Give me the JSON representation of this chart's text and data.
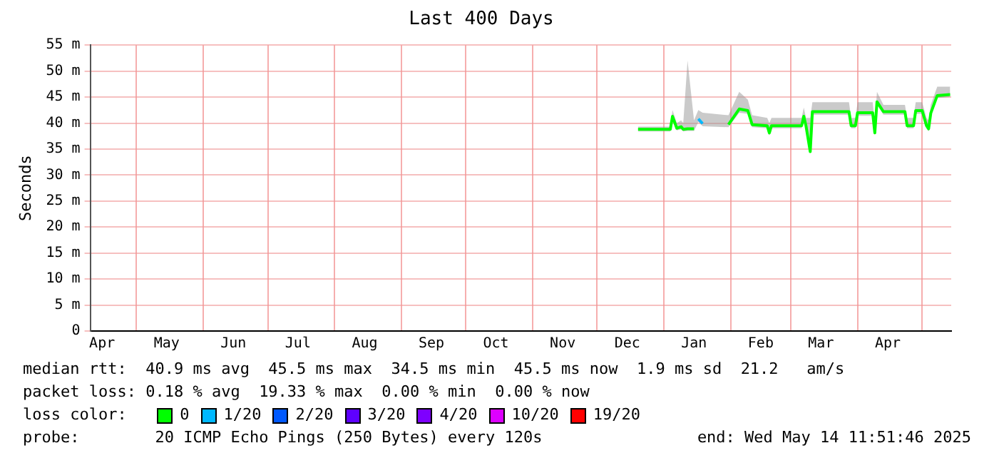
{
  "chart_data": {
    "type": "line",
    "title": "Last 400 Days",
    "ylabel": "Seconds",
    "legend_title": "loss color:",
    "legend": "bottom",
    "grid": true,
    "marker": "none",
    "line_style": "solid",
    "xlim": [
      "2024-04-09T11:51",
      "2025-05-14T11:51"
    ],
    "xticks": [
      {
        "value": "2024-04-15",
        "label": "Apr"
      },
      {
        "value": "2024-05-01",
        "label": null
      },
      {
        "value": "2024-05-15",
        "label": "May"
      },
      {
        "value": "2024-06-01",
        "label": null
      },
      {
        "value": "2024-06-15",
        "label": "Jun"
      },
      {
        "value": "2024-07-01",
        "label": null
      },
      {
        "value": "2024-07-15",
        "label": "Jul"
      },
      {
        "value": "2024-08-01",
        "label": null
      },
      {
        "value": "2024-08-15",
        "label": "Aug"
      },
      {
        "value": "2024-09-01",
        "label": null
      },
      {
        "value": "2024-09-15",
        "label": "Sep"
      },
      {
        "value": "2024-10-01",
        "label": null
      },
      {
        "value": "2024-10-15",
        "label": "Oct"
      },
      {
        "value": "2024-11-01",
        "label": null
      },
      {
        "value": "2024-11-15",
        "label": "Nov"
      },
      {
        "value": "2024-12-01",
        "label": null
      },
      {
        "value": "2024-12-15",
        "label": "Dec"
      },
      {
        "value": "2025-01-01",
        "label": null
      },
      {
        "value": "2025-01-15",
        "label": "Jan"
      },
      {
        "value": "2025-02-01",
        "label": null
      },
      {
        "value": "2025-02-15",
        "label": "Feb"
      },
      {
        "value": "2025-03-01",
        "label": null
      },
      {
        "value": "2025-03-15",
        "label": "Mar"
      },
      {
        "value": "2025-04-01",
        "label": null
      },
      {
        "value": "2025-04-15",
        "label": "Apr"
      },
      {
        "value": "2025-05-01",
        "label": null
      }
    ],
    "ylim": [
      0,
      55
    ],
    "yticks": [
      0,
      {
        "value": 5,
        "label": "5 m"
      },
      {
        "value": 10,
        "label": "10 m"
      },
      {
        "value": 15,
        "label": "15 m"
      },
      {
        "value": 20,
        "label": "20 m"
      },
      {
        "value": 25,
        "label": "25 m"
      },
      {
        "value": 30,
        "label": "30 m"
      },
      {
        "value": 35,
        "label": "35 m"
      },
      {
        "value": 40,
        "label": "40 m"
      },
      {
        "value": 45,
        "label": "45 m"
      },
      {
        "value": 50,
        "label": "50 m"
      },
      {
        "value": 55,
        "label": "55 m"
      }
    ],
    "x": [
      "2024-12-20",
      "2025-01-04",
      "2025-01-05",
      "2025-01-07",
      "2025-01-09",
      "2025-01-10",
      "2025-01-12",
      "2025-01-15",
      "2025-01-17",
      "2025-01-19",
      "2025-01-31",
      "2025-02-05",
      "2025-02-09",
      "2025-02-11",
      "2025-02-18",
      "2025-02-19",
      "2025-02-20",
      "2025-03-06",
      "2025-03-07",
      "2025-03-08",
      "2025-03-10",
      "2025-03-11",
      "2025-03-28",
      "2025-03-29",
      "2025-03-31",
      "2025-04-01",
      "2025-04-08",
      "2025-04-09",
      "2025-04-10",
      "2025-04-13",
      "2025-04-23",
      "2025-04-24",
      "2025-04-27",
      "2025-04-28",
      "2025-05-01",
      "2025-05-03",
      "2025-05-04",
      "2025-05-05",
      "2025-05-08",
      "2025-05-14"
    ],
    "series": [
      {
        "name": "0",
        "color": "#00ff00",
        "values": [
          38.8,
          38.8,
          41.3,
          39.0,
          39.3,
          38.8,
          38.9,
          38.9,
          null,
          null,
          39.7,
          42.7,
          42.4,
          39.7,
          39.5,
          38.1,
          39.5,
          39.5,
          41.3,
          39.5,
          34.5,
          42.2,
          42.2,
          39.5,
          39.5,
          42.0,
          42.0,
          38.1,
          44.1,
          42.2,
          42.2,
          39.5,
          39.5,
          42.4,
          42.4,
          39.5,
          38.9,
          41.9,
          45.3,
          45.5
        ],
        "lower": [
          38.4,
          38.4,
          40.5,
          38.6,
          38.8,
          38.4,
          38.5,
          38.5,
          40.2,
          39.4,
          39.2,
          42.0,
          41.8,
          39.2,
          39.0,
          37.6,
          39.0,
          39.0,
          40.8,
          39.0,
          34.5,
          41.6,
          41.6,
          39.0,
          39.0,
          41.4,
          41.4,
          37.6,
          43.5,
          41.6,
          41.6,
          39.0,
          39.0,
          41.8,
          41.8,
          39.0,
          38.4,
          41.3,
          44.8,
          45.0
        ],
        "upper": [
          39.3,
          39.3,
          42.5,
          40.0,
          40.5,
          40.0,
          52.0,
          40.5,
          42.5,
          42.0,
          41.5,
          46.0,
          44.5,
          41.5,
          41.0,
          40.0,
          41.0,
          41.0,
          43.0,
          41.0,
          41.0,
          44.0,
          44.0,
          41.0,
          41.0,
          44.0,
          44.0,
          40.0,
          46.0,
          43.5,
          43.5,
          41.0,
          41.0,
          44.0,
          44.0,
          41.0,
          40.5,
          43.5,
          47.0,
          47.0
        ]
      },
      {
        "name": "1/20",
        "color": "#00b8ff",
        "values": [
          null,
          null,
          null,
          null,
          null,
          null,
          null,
          null,
          40.8,
          39.9,
          null,
          null,
          null,
          null,
          null,
          null,
          null,
          null,
          null,
          null,
          null,
          null,
          null,
          null,
          null,
          null,
          null,
          null,
          null,
          null,
          null,
          null,
          null,
          null,
          null,
          null,
          null,
          null,
          null,
          null
        ]
      },
      {
        "name": "2/20",
        "color": "#0059ff",
        "values": [
          null,
          null,
          null,
          null,
          null,
          null,
          null,
          null,
          null,
          null,
          null,
          null,
          null,
          null,
          null,
          null,
          null,
          null,
          null,
          null,
          null,
          null,
          null,
          null,
          null,
          null,
          null,
          null,
          null,
          null,
          null,
          null,
          null,
          null,
          null,
          null,
          null,
          null,
          null,
          null
        ]
      },
      {
        "name": "3/20",
        "color": "#5e00ff",
        "values": [
          null,
          null,
          null,
          null,
          null,
          null,
          null,
          null,
          null,
          null,
          null,
          null,
          null,
          null,
          null,
          null,
          null,
          null,
          null,
          null,
          null,
          null,
          null,
          null,
          null,
          null,
          null,
          null,
          null,
          null,
          null,
          null,
          null,
          null,
          null,
          null,
          null,
          null,
          null,
          null
        ]
      },
      {
        "name": "4/20",
        "color": "#7e00ff",
        "values": [
          null,
          null,
          null,
          null,
          null,
          null,
          null,
          null,
          null,
          null,
          null,
          null,
          null,
          null,
          null,
          null,
          null,
          null,
          null,
          null,
          null,
          null,
          null,
          null,
          null,
          null,
          null,
          null,
          null,
          null,
          null,
          null,
          null,
          null,
          null,
          null,
          null,
          null,
          null,
          null
        ]
      },
      {
        "name": "10/20",
        "color": "#dd00ff",
        "values": [
          null,
          null,
          null,
          null,
          null,
          null,
          null,
          null,
          null,
          null,
          null,
          null,
          null,
          null,
          null,
          null,
          null,
          null,
          null,
          null,
          null,
          null,
          null,
          null,
          null,
          null,
          null,
          null,
          null,
          null,
          null,
          null,
          null,
          null,
          null,
          null,
          null,
          null,
          null,
          null
        ]
      },
      {
        "name": "19/20",
        "color": "#ff0000",
        "values": [
          null,
          null,
          null,
          null,
          null,
          null,
          null,
          null,
          null,
          null,
          null,
          null,
          null,
          null,
          null,
          null,
          null,
          null,
          null,
          null,
          null,
          null,
          null,
          null,
          null,
          null,
          null,
          null,
          null,
          null,
          null,
          null,
          null,
          null,
          null,
          null,
          null,
          null,
          null,
          null
        ]
      }
    ],
    "annotations": [
      "median rtt:  40.9 ms avg  45.5 ms max  34.5 ms min  45.5 ms now  1.9 ms sd  21.2   am/s",
      "packet loss: 0.18 % avg  19.33 % max  0.00 % min  0.00 % now",
      "probe:        20 ICMP Echo Pings (250 Bytes) every 120s",
      "end: Wed May 14 11:51:46 2025"
    ]
  }
}
